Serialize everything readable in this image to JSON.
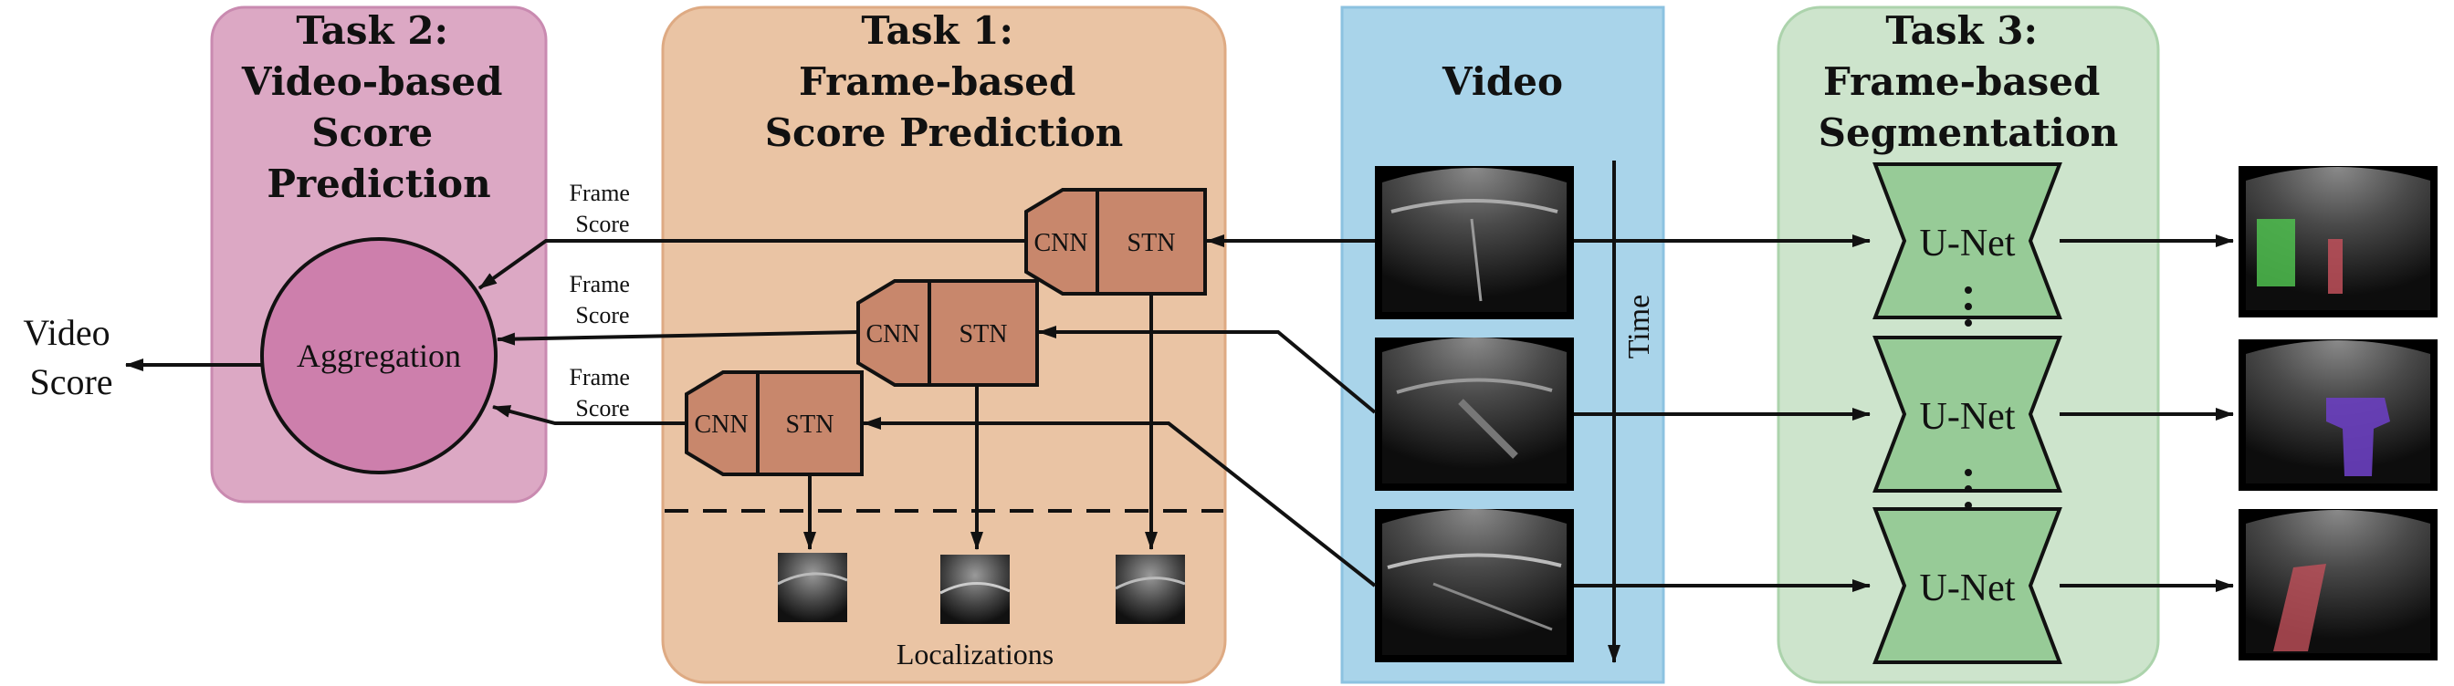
{
  "task2": {
    "title_lines": [
      "Task 2:",
      "Video-based",
      "Score",
      "Prediction"
    ],
    "aggregation": "Aggregation",
    "frame_score_lines": [
      "Frame",
      "Score"
    ]
  },
  "task1": {
    "title_lines": [
      "Task 1:",
      "Frame-based",
      "Score Prediction"
    ],
    "cnn": "CNN",
    "stn": "STN",
    "localizations": "Localizations"
  },
  "video": {
    "title": "Video",
    "time": "Time"
  },
  "task3": {
    "title_lines": [
      "Task 3:",
      "Frame-based",
      "Segmentation"
    ],
    "unet": "U-Net",
    "dots": "⋮"
  },
  "output": {
    "video_score_lines": [
      "Video",
      "Score"
    ]
  },
  "colors": {
    "task2_panel": "#dca8c4",
    "task2_border": "#c98ab0",
    "aggregation_fill": "#cd7fac",
    "task1_panel": "#eac4a4",
    "task1_border": "#deaa83",
    "net_fill": "#c8876c",
    "video_panel": "#a9d4ea",
    "video_border": "#8cc2e0",
    "task3_panel": "#cde4cc",
    "task3_border": "#acd3ac",
    "unet_fill": "#97cb97",
    "seg_green": "#4fbf4f",
    "seg_red": "#c0505a",
    "seg_purple": "#6a3fc0"
  }
}
